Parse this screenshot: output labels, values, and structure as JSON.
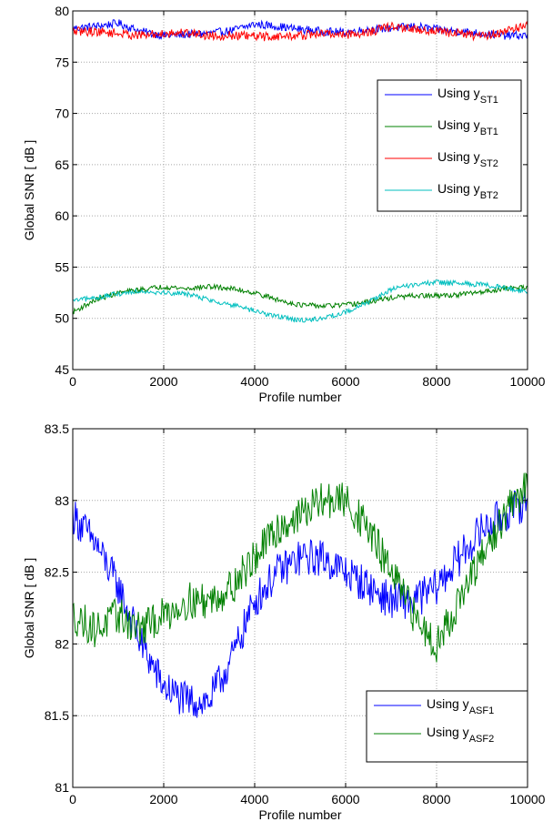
{
  "chart_data": [
    {
      "type": "line",
      "xlabel": "Profile number",
      "ylabel": "Global SNR [ dB ]",
      "xlim": [
        0,
        10000
      ],
      "ylim": [
        45,
        80
      ],
      "xticks": [
        "0",
        "2000",
        "4000",
        "6000",
        "8000",
        "10000"
      ],
      "yticks": [
        "45",
        "50",
        "55",
        "60",
        "65",
        "70",
        "75",
        "80"
      ],
      "grid": true,
      "legend_position": "right",
      "x": [
        0,
        500,
        1000,
        1500,
        2000,
        2500,
        3000,
        3500,
        4000,
        4500,
        5000,
        5500,
        6000,
        6500,
        7000,
        7500,
        8000,
        8500,
        9000,
        9500,
        10000
      ],
      "series": [
        {
          "name": "Using y",
          "subscript": "ST1",
          "color": "#0000ff",
          "noise": 0.4,
          "values": [
            78.3,
            78.5,
            78.8,
            78.0,
            77.6,
            77.7,
            77.8,
            78.1,
            78.7,
            78.5,
            78.2,
            78.0,
            77.9,
            78.2,
            78.3,
            78.5,
            78.2,
            78.0,
            77.8,
            77.6,
            77.6
          ]
        },
        {
          "name": "Using y",
          "subscript": "BT1",
          "color": "#008000",
          "noise": 0.25,
          "values": [
            50.6,
            51.8,
            52.5,
            52.8,
            53.1,
            52.9,
            53.1,
            52.9,
            52.5,
            51.8,
            51.3,
            51.2,
            51.3,
            51.6,
            52.0,
            52.2,
            52.2,
            52.3,
            52.6,
            52.9,
            53.1
          ]
        },
        {
          "name": "Using y",
          "subscript": "ST2",
          "color": "#ff0000",
          "noise": 0.45,
          "values": [
            78.0,
            78.0,
            77.8,
            77.6,
            77.8,
            77.9,
            77.6,
            77.6,
            77.5,
            77.5,
            77.6,
            77.8,
            77.7,
            77.9,
            78.5,
            78.2,
            78.0,
            77.8,
            77.5,
            78.0,
            78.6
          ]
        },
        {
          "name": "Using y",
          "subscript": "BT2",
          "color": "#00bfbf",
          "noise": 0.25,
          "values": [
            51.7,
            52.0,
            52.4,
            52.7,
            52.5,
            52.4,
            51.8,
            51.3,
            50.7,
            50.2,
            49.8,
            50.0,
            50.6,
            51.6,
            52.8,
            53.3,
            53.5,
            53.4,
            53.3,
            53.0,
            52.6
          ]
        }
      ]
    },
    {
      "type": "line",
      "xlabel": "Profile number",
      "ylabel": "Global SNR [ dB ]",
      "xlim": [
        0,
        10000
      ],
      "ylim": [
        81,
        83.5
      ],
      "xticks": [
        "0",
        "2000",
        "4000",
        "6000",
        "8000",
        "10000"
      ],
      "yticks": [
        "81",
        "81.5",
        "82",
        "82.5",
        "83",
        "83.5"
      ],
      "grid": true,
      "legend_position": "bottom-right",
      "x": [
        0,
        500,
        1000,
        1500,
        2000,
        2500,
        3000,
        3500,
        4000,
        4500,
        5000,
        5500,
        6000,
        6500,
        7000,
        7500,
        8000,
        8500,
        9000,
        9500,
        10000
      ],
      "series": [
        {
          "name": "Using y",
          "subscript": "ASF1",
          "color": "#0000ff",
          "noise": 0.13,
          "values": [
            82.9,
            82.7,
            82.4,
            82.0,
            81.7,
            81.6,
            81.6,
            81.9,
            82.3,
            82.5,
            82.6,
            82.6,
            82.5,
            82.4,
            82.3,
            82.3,
            82.4,
            82.6,
            82.8,
            82.9,
            83.0
          ]
        },
        {
          "name": "Using y",
          "subscript": "ASF2",
          "color": "#008000",
          "noise": 0.13,
          "values": [
            82.2,
            82.1,
            82.2,
            82.1,
            82.2,
            82.3,
            82.3,
            82.4,
            82.6,
            82.8,
            82.9,
            83.0,
            83.0,
            82.8,
            82.5,
            82.2,
            82.0,
            82.3,
            82.6,
            82.9,
            83.1
          ]
        }
      ]
    }
  ]
}
